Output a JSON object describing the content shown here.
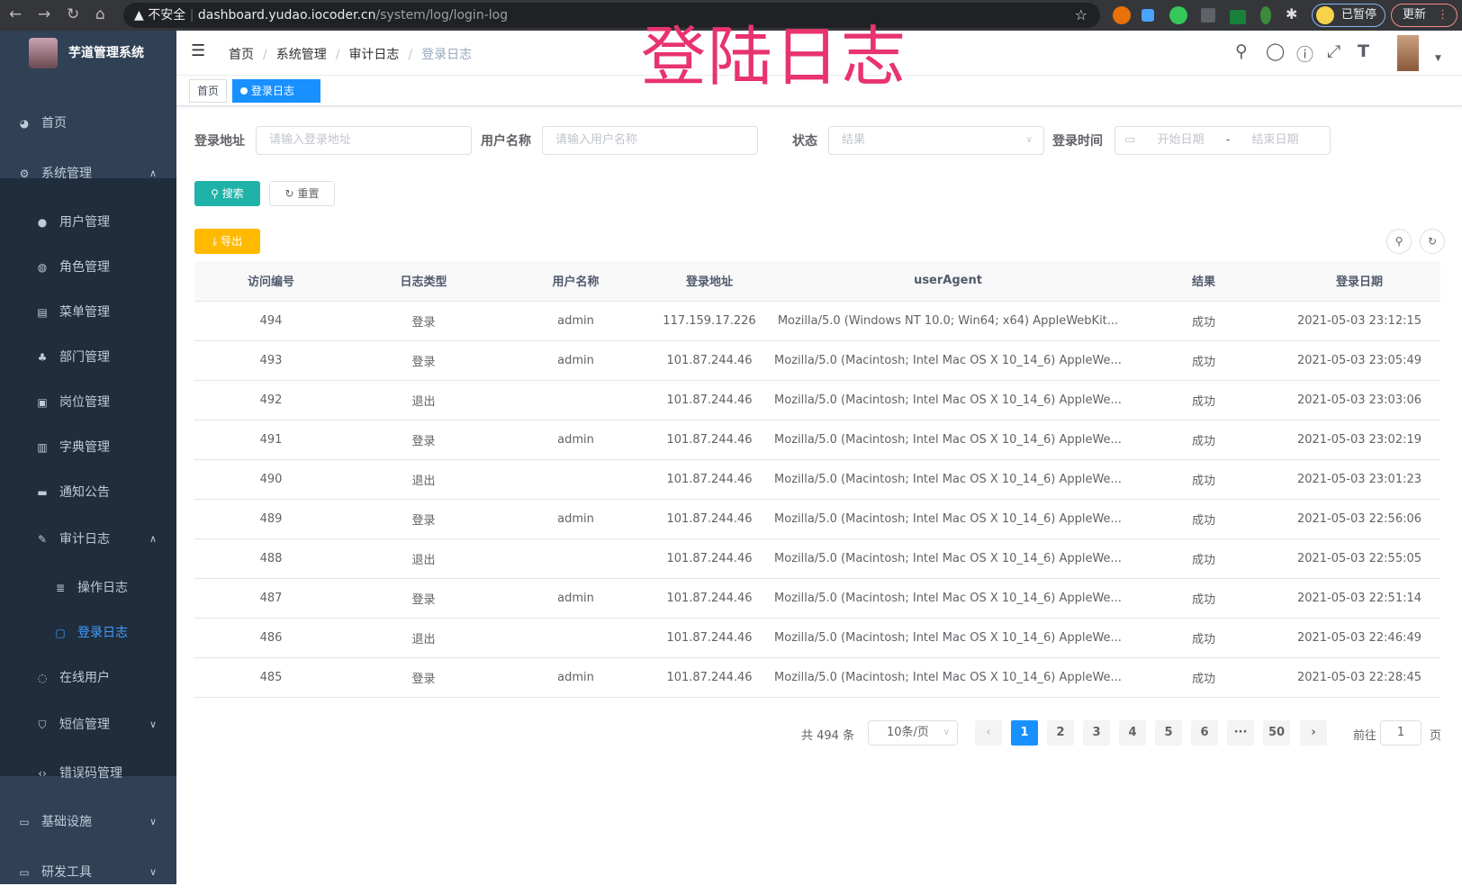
{
  "browser": {
    "security_label": "不安全",
    "url_host": "dashboard.yudao.iocoder.cn",
    "url_path": "/system/log/login-log",
    "profile_label": "已暂停",
    "update_label": "更新"
  },
  "overlay_title": "登陆日志",
  "overlay_color": "#e8336e",
  "accent_color": "#1890ff",
  "sidebar": {
    "logo_title": "芋道管理系统",
    "items": [
      {
        "label": "首页",
        "icon": "dashboard-icon"
      },
      {
        "label": "系统管理",
        "icon": "gear-icon",
        "expanded": true
      },
      {
        "label": "用户管理",
        "icon": "user-icon"
      },
      {
        "label": "角色管理",
        "icon": "peoples-icon"
      },
      {
        "label": "菜单管理",
        "icon": "tree-table-icon"
      },
      {
        "label": "部门管理",
        "icon": "tree-icon"
      },
      {
        "label": "岗位管理",
        "icon": "post-icon"
      },
      {
        "label": "字典管理",
        "icon": "dict-icon"
      },
      {
        "label": "通知公告",
        "icon": "message-icon"
      },
      {
        "label": "审计日志",
        "icon": "log-icon",
        "expanded": true
      },
      {
        "label": "操作日志",
        "icon": "form-icon"
      },
      {
        "label": "登录日志",
        "icon": "logininfor-icon",
        "active": true
      },
      {
        "label": "在线用户",
        "icon": "online-icon"
      },
      {
        "label": "短信管理",
        "icon": "shield-icon"
      },
      {
        "label": "错误码管理",
        "icon": "code-icon"
      },
      {
        "label": "基础设施",
        "icon": "monitor-icon"
      },
      {
        "label": "研发工具",
        "icon": "tool-icon"
      }
    ]
  },
  "breadcrumb": [
    "首页",
    "系统管理",
    "审计日志",
    "登录日志"
  ],
  "tags": [
    {
      "label": "首页"
    },
    {
      "label": "登录日志",
      "active": true
    }
  ],
  "filters": {
    "address": {
      "label": "登录地址",
      "placeholder": "请输入登录地址"
    },
    "username": {
      "label": "用户名称",
      "placeholder": "请输入用户名称"
    },
    "status": {
      "label": "状态",
      "placeholder": "结果"
    },
    "time": {
      "label": "登录时间",
      "start_placeholder": "开始日期",
      "separator": "-",
      "end_placeholder": "结束日期"
    }
  },
  "buttons": {
    "search": "搜索",
    "reset": "重置",
    "export": "导出"
  },
  "table": {
    "columns": [
      "访问编号",
      "日志类型",
      "用户名称",
      "登录地址",
      "userAgent",
      "结果",
      "登录日期"
    ],
    "rows": [
      [
        "494",
        "登录",
        "admin",
        "117.159.17.226",
        "Mozilla/5.0 (Windows NT 10.0; Win64; x64) AppleWebKit...",
        "成功",
        "2021-05-03 23:12:15"
      ],
      [
        "493",
        "登录",
        "admin",
        "101.87.244.46",
        "Mozilla/5.0 (Macintosh; Intel Mac OS X 10_14_6) AppleWe...",
        "成功",
        "2021-05-03 23:05:49"
      ],
      [
        "492",
        "退出",
        "",
        "101.87.244.46",
        "Mozilla/5.0 (Macintosh; Intel Mac OS X 10_14_6) AppleWe...",
        "成功",
        "2021-05-03 23:03:06"
      ],
      [
        "491",
        "登录",
        "admin",
        "101.87.244.46",
        "Mozilla/5.0 (Macintosh; Intel Mac OS X 10_14_6) AppleWe...",
        "成功",
        "2021-05-03 23:02:19"
      ],
      [
        "490",
        "退出",
        "",
        "101.87.244.46",
        "Mozilla/5.0 (Macintosh; Intel Mac OS X 10_14_6) AppleWe...",
        "成功",
        "2021-05-03 23:01:23"
      ],
      [
        "489",
        "登录",
        "admin",
        "101.87.244.46",
        "Mozilla/5.0 (Macintosh; Intel Mac OS X 10_14_6) AppleWe...",
        "成功",
        "2021-05-03 22:56:06"
      ],
      [
        "488",
        "退出",
        "",
        "101.87.244.46",
        "Mozilla/5.0 (Macintosh; Intel Mac OS X 10_14_6) AppleWe...",
        "成功",
        "2021-05-03 22:55:05"
      ],
      [
        "487",
        "登录",
        "admin",
        "101.87.244.46",
        "Mozilla/5.0 (Macintosh; Intel Mac OS X 10_14_6) AppleWe...",
        "成功",
        "2021-05-03 22:51:14"
      ],
      [
        "486",
        "退出",
        "",
        "101.87.244.46",
        "Mozilla/5.0 (Macintosh; Intel Mac OS X 10_14_6) AppleWe...",
        "成功",
        "2021-05-03 22:46:49"
      ],
      [
        "485",
        "登录",
        "admin",
        "101.87.244.46",
        "Mozilla/5.0 (Macintosh; Intel Mac OS X 10_14_6) AppleWe...",
        "成功",
        "2021-05-03 22:28:45"
      ]
    ]
  },
  "pagination": {
    "total_label": "共 494 条",
    "page_size": "10条/页",
    "pages": [
      "1",
      "2",
      "3",
      "4",
      "5",
      "6",
      "···",
      "50"
    ],
    "current": "1",
    "goto_label": "前往",
    "goto_value": "1",
    "page_suffix": "页"
  }
}
